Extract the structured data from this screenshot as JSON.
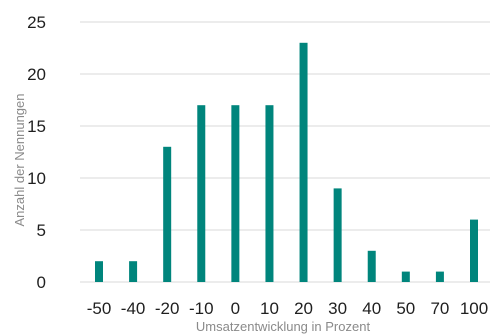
{
  "chart_data": {
    "type": "bar",
    "categories": [
      "-50",
      "-40",
      "-20",
      "-10",
      "0",
      "10",
      "20",
      "30",
      "40",
      "50",
      "70",
      "100"
    ],
    "values": [
      2,
      2,
      13,
      17,
      17,
      17,
      23,
      9,
      3,
      1,
      1,
      6
    ],
    "title": "",
    "xlabel": "Umsatzentwicklung in Prozent",
    "ylabel": "Anzahl der Nennungen",
    "ylim": [
      0,
      25
    ],
    "yticks": [
      "0",
      "5",
      "10",
      "15",
      "20",
      "25"
    ],
    "grid": "horizontal",
    "legend": "none",
    "bar_color": "#00857c",
    "grid_color": "#d9d9d9"
  }
}
